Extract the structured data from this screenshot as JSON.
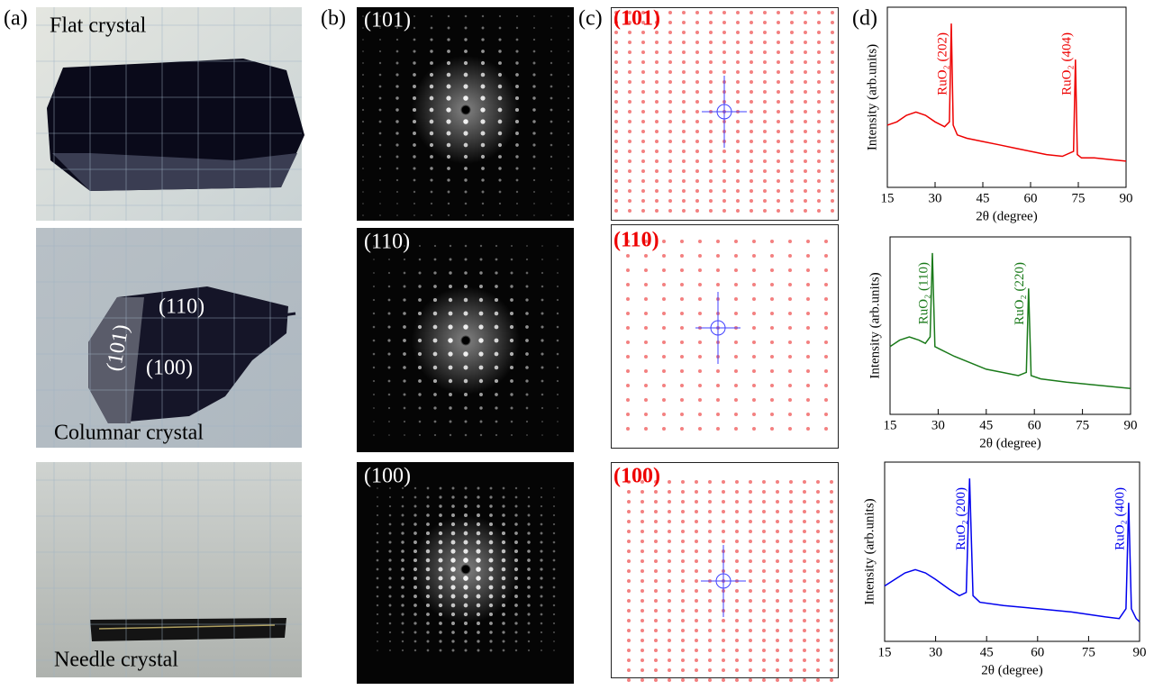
{
  "panel_labels": [
    "(a)",
    "(b)",
    "(c)",
    "(d)"
  ],
  "photos": [
    "Flat crystal",
    "Columnar crystal",
    "Needle crystal"
  ],
  "columnar_faces": [
    "(110)",
    "(101)",
    "(100)"
  ],
  "saed_labels": [
    "(101)",
    "(110)",
    "(100)"
  ],
  "simulated_labels": [
    "(101)",
    "(110)",
    "(100)"
  ],
  "chart_data": [
    {
      "type": "line",
      "color": "#ee0000",
      "xlabel": "2θ (degree)",
      "ylabel": "Intensity (arb.units)",
      "xlim": [
        15,
        90
      ],
      "ylim": [
        0,
        110
      ],
      "xticks": [
        15,
        30,
        45,
        60,
        75,
        90
      ],
      "x": [
        15,
        18,
        21,
        24,
        27,
        30,
        33,
        34.5,
        35.1,
        35.7,
        37,
        40,
        45,
        50,
        55,
        60,
        65,
        70,
        73.5,
        74.1,
        74.7,
        76,
        80,
        85,
        90
      ],
      "values": [
        38,
        40,
        44,
        46,
        44,
        40,
        37,
        40,
        100,
        38,
        32,
        30,
        28,
        26,
        24,
        22,
        20,
        19,
        22,
        78,
        20,
        18,
        18,
        17,
        16
      ],
      "peaks": [
        {
          "x": 35.1,
          "label": "RuO₂ (202)"
        },
        {
          "x": 74.1,
          "label": "RuO₂ (404)"
        }
      ]
    },
    {
      "type": "line",
      "color": "#1a7a1a",
      "xlabel": "2θ (degree)",
      "ylabel": "Intensity (arb.units)",
      "xlim": [
        15,
        90
      ],
      "ylim": [
        0,
        110
      ],
      "xticks": [
        15,
        30,
        45,
        60,
        75,
        90
      ],
      "x": [
        15,
        18,
        21,
        24,
        26,
        27.5,
        28.2,
        29,
        31,
        35,
        40,
        45,
        50,
        55,
        57.5,
        58.2,
        59,
        62,
        70,
        80,
        90
      ],
      "values": [
        42,
        46,
        48,
        46,
        44,
        48,
        100,
        42,
        40,
        36,
        32,
        28,
        26,
        24,
        26,
        78,
        24,
        22,
        20,
        18,
        16
      ],
      "peaks": [
        {
          "x": 28.2,
          "label": "RuO₂ (110)"
        },
        {
          "x": 58.2,
          "label": "RuO₂ (220)"
        }
      ]
    },
    {
      "type": "line",
      "color": "#0000ee",
      "xlabel": "2θ (degree)",
      "ylabel": "Intensity (arb.units)",
      "xlim": [
        15,
        90
      ],
      "ylim": [
        0,
        110
      ],
      "xticks": [
        15,
        30,
        45,
        60,
        75,
        90
      ],
      "x": [
        15,
        18,
        21,
        24,
        27,
        30,
        34,
        37,
        39,
        40,
        41,
        43,
        50,
        60,
        70,
        80,
        84,
        86,
        86.8,
        87.6,
        89,
        90
      ],
      "values": [
        34,
        38,
        42,
        44,
        42,
        38,
        32,
        28,
        30,
        100,
        28,
        24,
        22,
        20,
        18,
        15,
        14,
        20,
        85,
        20,
        14,
        12
      ],
      "peaks": [
        {
          "x": 40,
          "label": "RuO₂ (200)"
        },
        {
          "x": 86.8,
          "label": "RuO₂ (400)"
        }
      ]
    }
  ]
}
